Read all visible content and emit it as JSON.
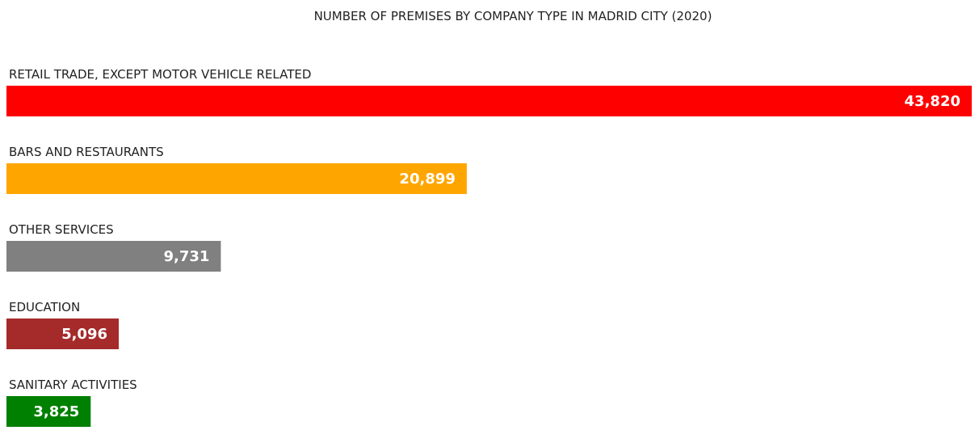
{
  "chart_data": {
    "type": "bar",
    "orientation": "horizontal",
    "title": "NUMBER OF PREMISES BY COMPANY TYPE IN MADRID CITY (2020)",
    "categories": [
      "RETAIL TRADE, EXCEPT MOTOR VEHICLE RELATED",
      "BARS AND RESTAURANTS",
      "OTHER SERVICES",
      "EDUCATION",
      "SANITARY ACTIVITIES"
    ],
    "values": [
      43820,
      20899,
      9731,
      5096,
      3825
    ],
    "value_labels": [
      "43,820",
      "20,899",
      "9,731",
      "5,096",
      "3,825"
    ],
    "colors": [
      "#ff0000",
      "#ffa500",
      "#808080",
      "#a52a2a",
      "#008000"
    ],
    "xlim": [
      0,
      43820
    ],
    "grid": false,
    "legend": "none",
    "axes_visible": false
  }
}
